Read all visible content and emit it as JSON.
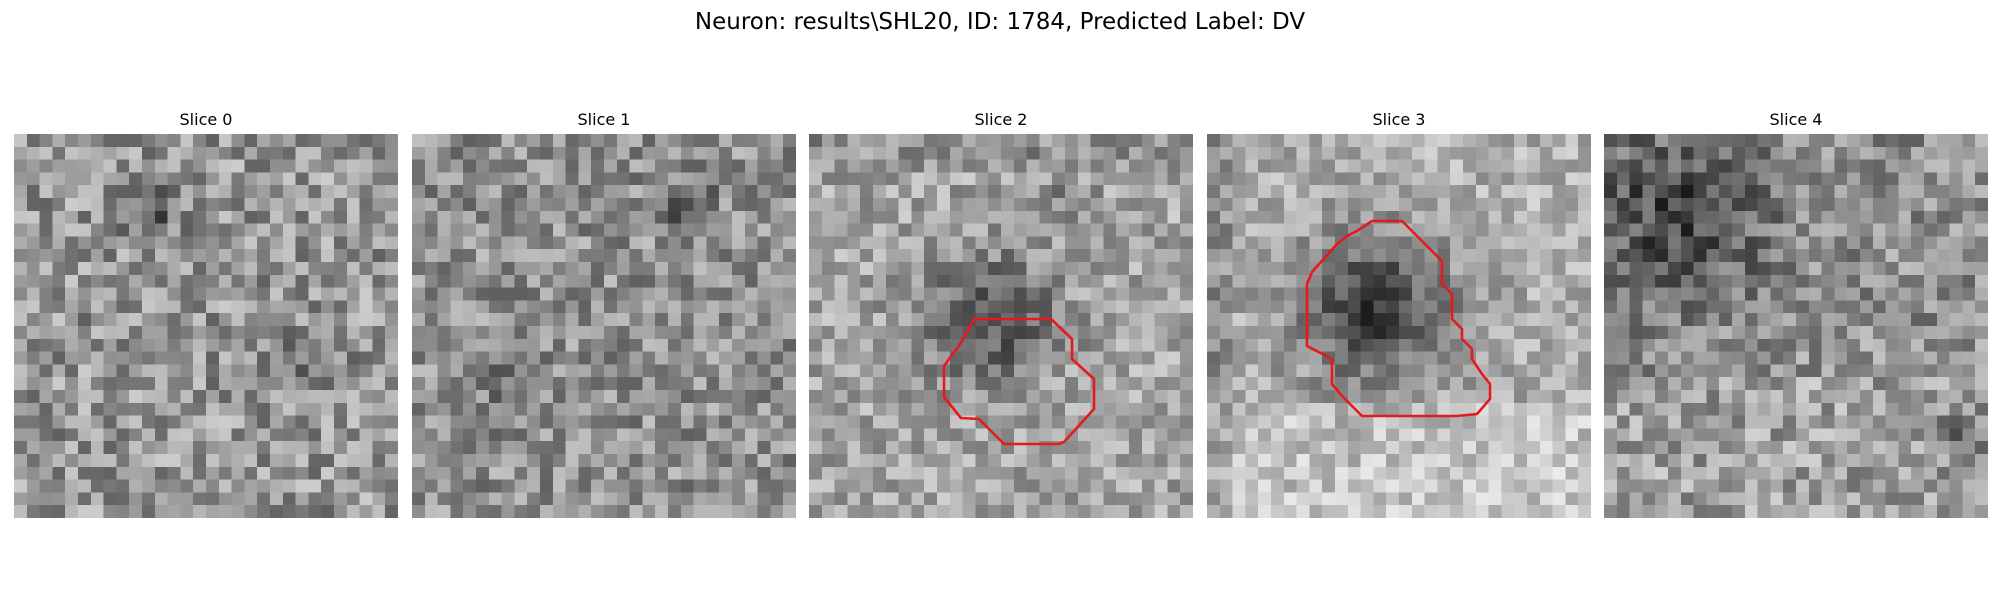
{
  "figure": {
    "title": "Neuron: results\\SHL20, ID: 1784, Predicted Label: DV"
  },
  "slices": [
    {
      "title": "Slice 0",
      "has_contour": false
    },
    {
      "title": "Slice 1",
      "has_contour": false
    },
    {
      "title": "Slice 2",
      "has_contour": true
    },
    {
      "title": "Slice 3",
      "has_contour": true
    },
    {
      "title": "Slice 4",
      "has_contour": false
    }
  ],
  "contour_color": "#e41a1c",
  "colormap": "gray"
}
